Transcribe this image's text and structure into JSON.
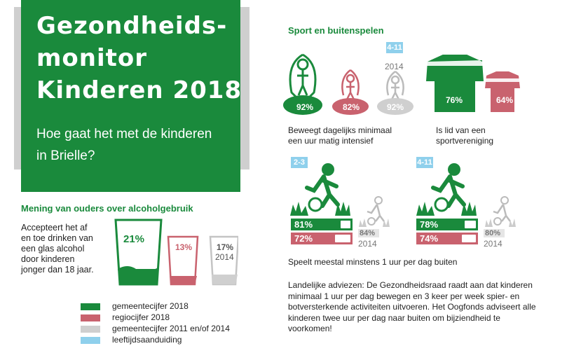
{
  "header": {
    "title": "Gezondheids-\nmonitor\nKinderen 2018",
    "subtitle": "Hoe gaat het met de kinderen\nin Brielle?"
  },
  "alcohol": {
    "section_title": "Mening van ouders over alcoholgebruik",
    "description": "Accepteert het af\nen toe drinken van\neen glas alcohol\ndoor kinderen\njonger dan 18 jaar.",
    "gemeente": "21%",
    "regio": "13%",
    "prev": "17%",
    "prev_year": "2014"
  },
  "legend": [
    {
      "label": "gemeentecijfer 2018",
      "color": "#1a8a3c"
    },
    {
      "label": "regiocijfer 2018",
      "color": "#c9626e"
    },
    {
      "label": "gemeentecijfer 2011 en/of 2014",
      "color": "#cfcfcf"
    },
    {
      "label": "leeftijdsaanduiding",
      "color": "#8fd0ec"
    }
  ],
  "sport": {
    "section_title": "Sport en buitenspelen",
    "age_label": "4-11",
    "prev_year": "2014",
    "move_gemeente": "92%",
    "move_regio": "82%",
    "move_prev": "92%",
    "move_caption": "Beweegt dagelijks minimaal\neen uur matig intensief",
    "club_gemeente": "76%",
    "club_regio": "64%",
    "club_caption": "Is lid van een\nsportvereniging"
  },
  "outdoor": {
    "group_a": {
      "age": "2-3",
      "gemeente": "81%",
      "regio": "72%",
      "prev": "84%",
      "prev_year": "2014"
    },
    "group_b": {
      "age": "4-11",
      "gemeente": "78%",
      "regio": "74%",
      "prev": "80%",
      "prev_year": "2014"
    },
    "caption": "Speelt meestal minstens 1 uur per dag buiten",
    "advice": "Landelijke adviezen: De Gezondheidsraad raadt aan dat kinderen minimaal 1 uur per dag bewegen en 3 keer per week spier- en botversterkende activiteiten uitvoeren. Het Oogfonds adviseert alle kinderen twee uur per dag naar buiten om bijziendheid te voorkomen!"
  }
}
